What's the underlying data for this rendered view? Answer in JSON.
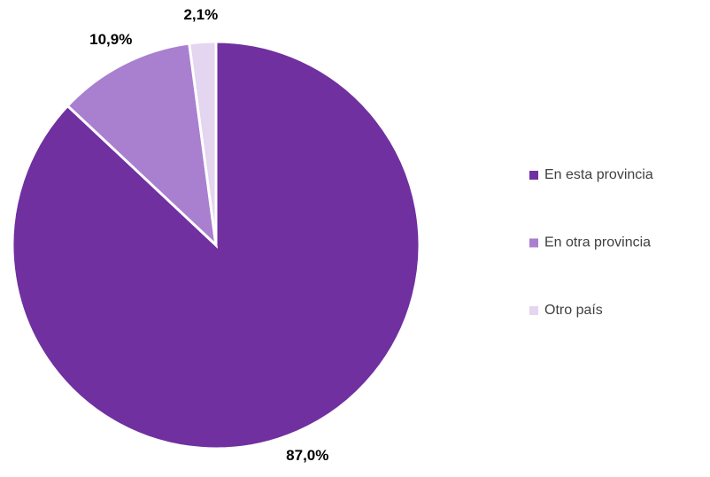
{
  "chart_data": {
    "type": "pie",
    "categories": [
      "En esta provincia",
      "En otra provincia",
      "Otro país"
    ],
    "values": [
      87.0,
      10.9,
      2.1
    ],
    "value_labels": [
      "87,0%",
      "10,9%",
      "2,1%"
    ],
    "colors": [
      "#7030a0",
      "#a97fcf",
      "#e4d5f0"
    ],
    "legend": "right"
  }
}
